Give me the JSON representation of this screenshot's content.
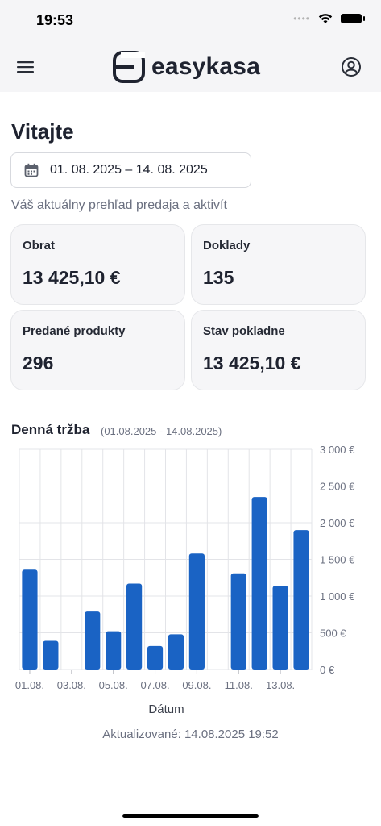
{
  "status_bar": {
    "time": "19:53"
  },
  "app_bar": {
    "brand": "easykasa",
    "brand_color": "#1f2330"
  },
  "page": {
    "title": "Vitajte",
    "date_range": "01. 08. 2025 – 14. 08. 2025",
    "subtitle": "Váš aktuálny prehľad predaja a aktivít"
  },
  "cards": [
    {
      "label": "Obrat",
      "value": "13 425,10 €"
    },
    {
      "label": "Doklady",
      "value": "135"
    },
    {
      "label": "Predané produkty",
      "value": "296"
    },
    {
      "label": "Stav pokladne",
      "value": "13 425,10 €"
    }
  ],
  "chart_section": {
    "title": "Denná tržba",
    "range": "(01.08.2025 - 14.08.2025)"
  },
  "chart_data": {
    "type": "bar",
    "categories": [
      "01.08.",
      "02.08.",
      "03.08.",
      "04.08.",
      "05.08.",
      "06.08.",
      "07.08.",
      "08.08.",
      "09.08.",
      "10.08.",
      "11.08.",
      "12.08.",
      "13.08.",
      "14.08."
    ],
    "x_tick_labels": [
      "01.08.",
      "03.08.",
      "05.08.",
      "07.08.",
      "09.08.",
      "11.08.",
      "13.08."
    ],
    "values": [
      1360,
      390,
      0,
      790,
      520,
      1170,
      320,
      480,
      1580,
      0,
      1310,
      2350,
      1140,
      1900
    ],
    "xlabel": "Dátum",
    "ylabel": "",
    "ylim": [
      0,
      3000
    ],
    "y_ticks": [
      "0 €",
      "500 €",
      "1 000 €",
      "1 500 €",
      "2 000 €",
      "2 500 €",
      "3 000 €"
    ],
    "bar_color": "#1a63c4",
    "grid": true
  },
  "footer": {
    "updated": "Aktualizované: 14.08.2025  19:52"
  }
}
